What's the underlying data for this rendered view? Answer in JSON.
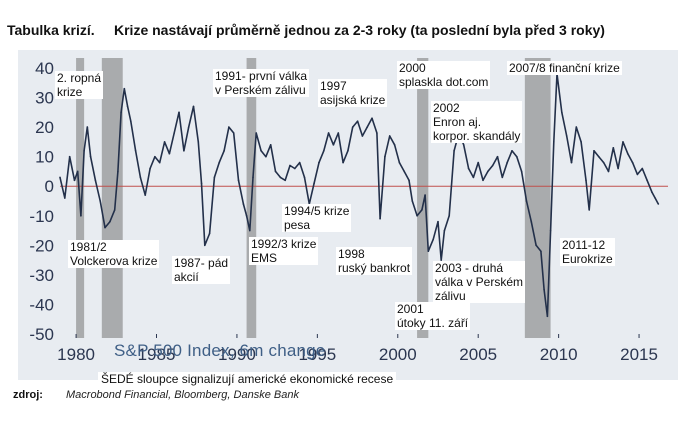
{
  "header": {
    "left_title": "Tabulka krizí.",
    "main_title": "Krize nastávají průměrně jednou za 2-3 roky (ta poslední byla před 3 roky)"
  },
  "colors": {
    "background": "#e8ecf1",
    "series": "#23304a",
    "recession": "#a9abad",
    "zero_line": "#c0504d",
    "legend_text": "#3f5f86"
  },
  "chart_data": {
    "type": "line",
    "title": "S&P 500 Index, 6m change",
    "xlim": [
      1979.0,
      2016.8
    ],
    "ylim": [
      -50,
      40
    ],
    "x_ticks": [
      1980,
      1985,
      1990,
      1995,
      2000,
      2005,
      2010,
      2015
    ],
    "y_ticks": [
      40,
      30,
      20,
      10,
      0,
      -10,
      -20,
      -30,
      -40,
      -50
    ],
    "recessions": [
      [
        1980.0,
        1980.5
      ],
      [
        1981.6,
        1982.9
      ],
      [
        1990.6,
        1991.2
      ],
      [
        2001.2,
        2001.9
      ],
      [
        2007.9,
        2009.5
      ]
    ],
    "series": [
      {
        "name": "S&P 500 Index, 6m change",
        "x": [
          1979.0,
          1979.3,
          1979.6,
          1979.9,
          1980.1,
          1980.3,
          1980.5,
          1980.7,
          1980.9,
          1981.2,
          1981.5,
          1981.8,
          1982.1,
          1982.4,
          1982.6,
          1982.8,
          1983.0,
          1983.2,
          1983.4,
          1983.7,
          1984.0,
          1984.3,
          1984.6,
          1984.9,
          1985.2,
          1985.5,
          1985.8,
          1986.1,
          1986.4,
          1986.7,
          1987.0,
          1987.3,
          1987.6,
          1987.8,
          1988.0,
          1988.3,
          1988.6,
          1988.9,
          1989.2,
          1989.5,
          1989.8,
          1990.1,
          1990.4,
          1990.6,
          1990.8,
          1991.0,
          1991.2,
          1991.5,
          1991.8,
          1992.1,
          1992.4,
          1992.7,
          1993.0,
          1993.3,
          1993.6,
          1993.9,
          1994.2,
          1994.5,
          1994.8,
          1995.1,
          1995.4,
          1995.7,
          1996.0,
          1996.3,
          1996.6,
          1996.9,
          1997.2,
          1997.5,
          1997.8,
          1998.1,
          1998.4,
          1998.7,
          1998.9,
          1999.2,
          1999.5,
          1999.8,
          2000.1,
          2000.4,
          2000.7,
          2000.9,
          2001.2,
          2001.5,
          2001.7,
          2001.9,
          2002.2,
          2002.5,
          2002.7,
          2002.9,
          2003.2,
          2003.5,
          2003.8,
          2004.1,
          2004.4,
          2004.7,
          2005.0,
          2005.3,
          2005.6,
          2005.9,
          2006.2,
          2006.5,
          2006.8,
          2007.1,
          2007.4,
          2007.7,
          2008.0,
          2008.3,
          2008.6,
          2008.9,
          2009.1,
          2009.3,
          2009.5,
          2009.7,
          2009.9,
          2010.2,
          2010.5,
          2010.8,
          2011.1,
          2011.4,
          2011.7,
          2011.9,
          2012.2,
          2012.5,
          2012.8,
          2013.1,
          2013.4,
          2013.7,
          2014.0,
          2014.3,
          2014.6,
          2014.9,
          2015.2,
          2015.5,
          2015.8,
          2016.0,
          2016.2
        ],
        "values": [
          3,
          -4,
          10,
          2,
          5,
          -10,
          12,
          20,
          10,
          2,
          -5,
          -14,
          -12,
          -8,
          5,
          25,
          33,
          27,
          22,
          12,
          3,
          -3,
          6,
          10,
          8,
          15,
          11,
          18,
          25,
          12,
          20,
          27,
          15,
          1,
          -20,
          -16,
          3,
          8,
          12,
          20,
          18,
          2,
          -6,
          -10,
          -15,
          3,
          18,
          12,
          10,
          14,
          5,
          3,
          2,
          7,
          6,
          8,
          3,
          -6,
          1,
          8,
          12,
          18,
          14,
          18,
          8,
          12,
          20,
          22,
          17,
          20,
          23,
          18,
          -11,
          10,
          17,
          14,
          8,
          5,
          2,
          -5,
          -10,
          -8,
          -3,
          -22,
          -18,
          -12,
          -25,
          -15,
          -10,
          12,
          18,
          14,
          6,
          3,
          8,
          2,
          5,
          7,
          10,
          3,
          8,
          12,
          10,
          5,
          -5,
          -12,
          -20,
          -22,
          -35,
          -44,
          -15,
          15,
          38,
          25,
          17,
          8,
          20,
          15,
          2,
          -8,
          12,
          10,
          8,
          5,
          13,
          6,
          15,
          11,
          8,
          4,
          6,
          2,
          -2,
          -4,
          -6
        ]
      }
    ],
    "annotations": [
      {
        "text": "2. ropná\nkrize"
      },
      {
        "text": "1991- první válka\nv Perském zálivu"
      },
      {
        "text": "1997\nasijská krize"
      },
      {
        "text": "2000\nsplaskla dot.com"
      },
      {
        "text": "2007/8 finanční krize"
      },
      {
        "text": "2002\nEnron aj.\nkorpor. skandály"
      },
      {
        "text": "1994/5 krize\npesa"
      },
      {
        "text": "1981/2\nVolckerova krize"
      },
      {
        "text": "1987- pád\nakcií"
      },
      {
        "text": "1992/3 krize\nEMS"
      },
      {
        "text": "1998\nruský bankrot"
      },
      {
        "text": "2011-12\nEurokrize"
      },
      {
        "text": "2003 - druhá\nválka v Perském\nzálivu"
      },
      {
        "text": "2001\nútoky 11. září"
      }
    ],
    "note": "ŠEDÉ sloupce signalizují americké ekonomické recese"
  },
  "source": {
    "label": "zdroj:",
    "text": "Macrobond Financial, Bloomberg, Danske Bank"
  }
}
